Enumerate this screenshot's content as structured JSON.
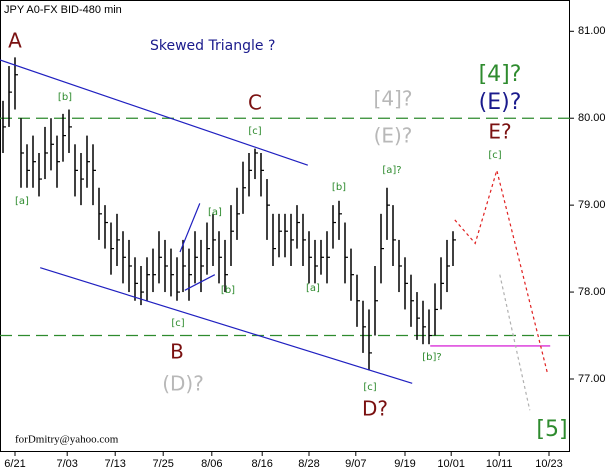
{
  "chart_data": {
    "type": "ohlc",
    "title": "JPY A0-FX BID-480 min",
    "series": [
      {
        "name": "high",
        "values": [
          80.2,
          80.6,
          80.7,
          80.0,
          79.7,
          79.8,
          79.6,
          79.9,
          80.0,
          79.8,
          80.05,
          80.1,
          79.7,
          79.6,
          79.8,
          79.7,
          79.2,
          79.0,
          78.8,
          78.9,
          78.7,
          78.6,
          78.4,
          78.3,
          78.4,
          78.5,
          78.7,
          78.6,
          78.5,
          78.4,
          78.6,
          78.5,
          78.7,
          78.6,
          78.8,
          78.9,
          78.7,
          78.6,
          79.0,
          79.2,
          79.5,
          79.6,
          79.65,
          79.6,
          79.3,
          78.9,
          78.9,
          78.9,
          78.9,
          79.0,
          78.9,
          78.7,
          78.6,
          78.6,
          78.7,
          79.0,
          79.05,
          78.8,
          78.5,
          78.2,
          77.9,
          77.8,
          78.3,
          78.9,
          79.2,
          79.0,
          78.6,
          78.4,
          78.2,
          78.0,
          77.9,
          77.8,
          78.1,
          78.4,
          78.6,
          78.7
        ]
      },
      {
        "name": "low",
        "values": [
          79.6,
          79.9,
          80.1,
          79.2,
          79.2,
          79.2,
          79.1,
          79.3,
          79.4,
          79.2,
          79.5,
          79.6,
          79.1,
          79.0,
          79.2,
          79.0,
          78.6,
          78.5,
          78.2,
          78.3,
          78.1,
          78.0,
          77.9,
          77.85,
          77.9,
          78.0,
          78.1,
          78.0,
          77.95,
          77.9,
          78.0,
          77.9,
          78.1,
          78.0,
          78.2,
          78.3,
          78.1,
          78.0,
          78.3,
          78.6,
          78.9,
          79.1,
          79.3,
          79.1,
          78.6,
          78.3,
          78.4,
          78.4,
          78.3,
          78.5,
          78.3,
          78.1,
          78.1,
          78.2,
          78.1,
          78.5,
          78.6,
          78.1,
          77.9,
          77.6,
          77.3,
          77.1,
          77.5,
          78.1,
          78.6,
          78.3,
          78.0,
          77.8,
          77.6,
          77.45,
          77.4,
          77.4,
          77.5,
          77.8,
          78.0,
          78.3
        ]
      },
      {
        "name": "close",
        "values": [
          79.9,
          80.3,
          80.5,
          79.6,
          79.4,
          79.5,
          79.3,
          79.6,
          79.7,
          79.5,
          79.8,
          79.9,
          79.4,
          79.3,
          79.5,
          79.4,
          78.9,
          78.8,
          78.5,
          78.6,
          78.4,
          78.3,
          78.1,
          78.0,
          78.2,
          78.2,
          78.4,
          78.3,
          78.2,
          78.0,
          78.3,
          78.2,
          78.4,
          78.3,
          78.5,
          78.6,
          78.4,
          78.2,
          78.7,
          78.9,
          79.2,
          79.4,
          79.6,
          79.4,
          79.0,
          78.5,
          78.7,
          78.7,
          78.6,
          78.8,
          78.6,
          78.4,
          78.3,
          78.4,
          78.4,
          78.8,
          78.9,
          78.4,
          78.2,
          77.9,
          77.6,
          77.3,
          77.9,
          78.5,
          79.0,
          78.6,
          78.3,
          78.1,
          77.9,
          77.7,
          77.6,
          77.5,
          77.8,
          78.1,
          78.3,
          78.6
        ]
      }
    ],
    "color": "#000000",
    "xlim": [
      -0.5,
      94.5
    ],
    "xticks": [
      {
        "value": 2,
        "label": "6/21"
      },
      {
        "value": 10.7,
        "label": "7/03"
      },
      {
        "value": 18.7,
        "label": "7/13"
      },
      {
        "value": 26.7,
        "label": "7/25"
      },
      {
        "value": 34.8,
        "label": "8/06"
      },
      {
        "value": 43.2,
        "label": "8/16"
      },
      {
        "value": 51,
        "label": "8/28"
      },
      {
        "value": 58.8,
        "label": "9/07"
      },
      {
        "value": 67,
        "label": "9/19"
      },
      {
        "value": 74.7,
        "label": "10/01"
      },
      {
        "value": 82.7,
        "label": "10/11"
      },
      {
        "value": 91,
        "label": "10/23"
      }
    ],
    "ylim": [
      76.16,
      81.36
    ],
    "yticks": [
      {
        "value": 77,
        "label": "77.00"
      },
      {
        "value": 78,
        "label": "78.00"
      },
      {
        "value": 79,
        "label": "79.00"
      },
      {
        "value": 80,
        "label": "80.00"
      },
      {
        "value": 81,
        "label": "81.00"
      }
    ],
    "levels": [
      {
        "value": 80.0,
        "color": "#2e8b2e"
      },
      {
        "value": 77.5,
        "color": "#2e8b2e"
      }
    ],
    "lines": [
      {
        "color": "#2020c0",
        "style": "solid",
        "x": [
          -0.5,
          50.8
        ],
        "y": [
          80.67,
          79.46
        ]
      },
      {
        "color": "#2020c0",
        "style": "solid",
        "x": [
          6.2,
          68.2
        ],
        "y": [
          78.28,
          76.95
        ]
      },
      {
        "color": "#2020c0",
        "style": "solid",
        "x": [
          29.5,
          32.8
        ],
        "y": [
          78.46,
          79.02
        ]
      },
      {
        "color": "#2020c0",
        "style": "solid",
        "x": [
          30.3,
          35.3
        ],
        "y": [
          78.02,
          78.2
        ]
      },
      {
        "color": "#d000d0",
        "style": "solid",
        "x": [
          71.2,
          91.2
        ],
        "y": [
          77.38,
          77.38
        ]
      },
      {
        "color": "#e02020",
        "style": "dotted",
        "x": [
          75.3,
          78.7,
          82.3,
          90.8
        ],
        "y": [
          78.83,
          78.56,
          79.4,
          77.05
        ]
      },
      {
        "color": "#b0b0b0",
        "style": "dotted",
        "x": [
          82.8,
          87.8
        ],
        "y": [
          78.2,
          76.64
        ]
      }
    ],
    "annotations": [
      "A",
      "Skewed Triangle ?",
      "[b]",
      "[a]",
      "C",
      "[c]",
      "[4]?",
      "(E)?",
      "[4]?",
      "(E)?",
      "E?",
      "[c]",
      "[a]?",
      "[b]",
      "[a]",
      "[b]",
      "[a]",
      "[c]",
      "B",
      "(D)?",
      "[b]?",
      "[c]",
      "D?",
      "[5]",
      "forDmitry@yahoo.com"
    ]
  }
}
